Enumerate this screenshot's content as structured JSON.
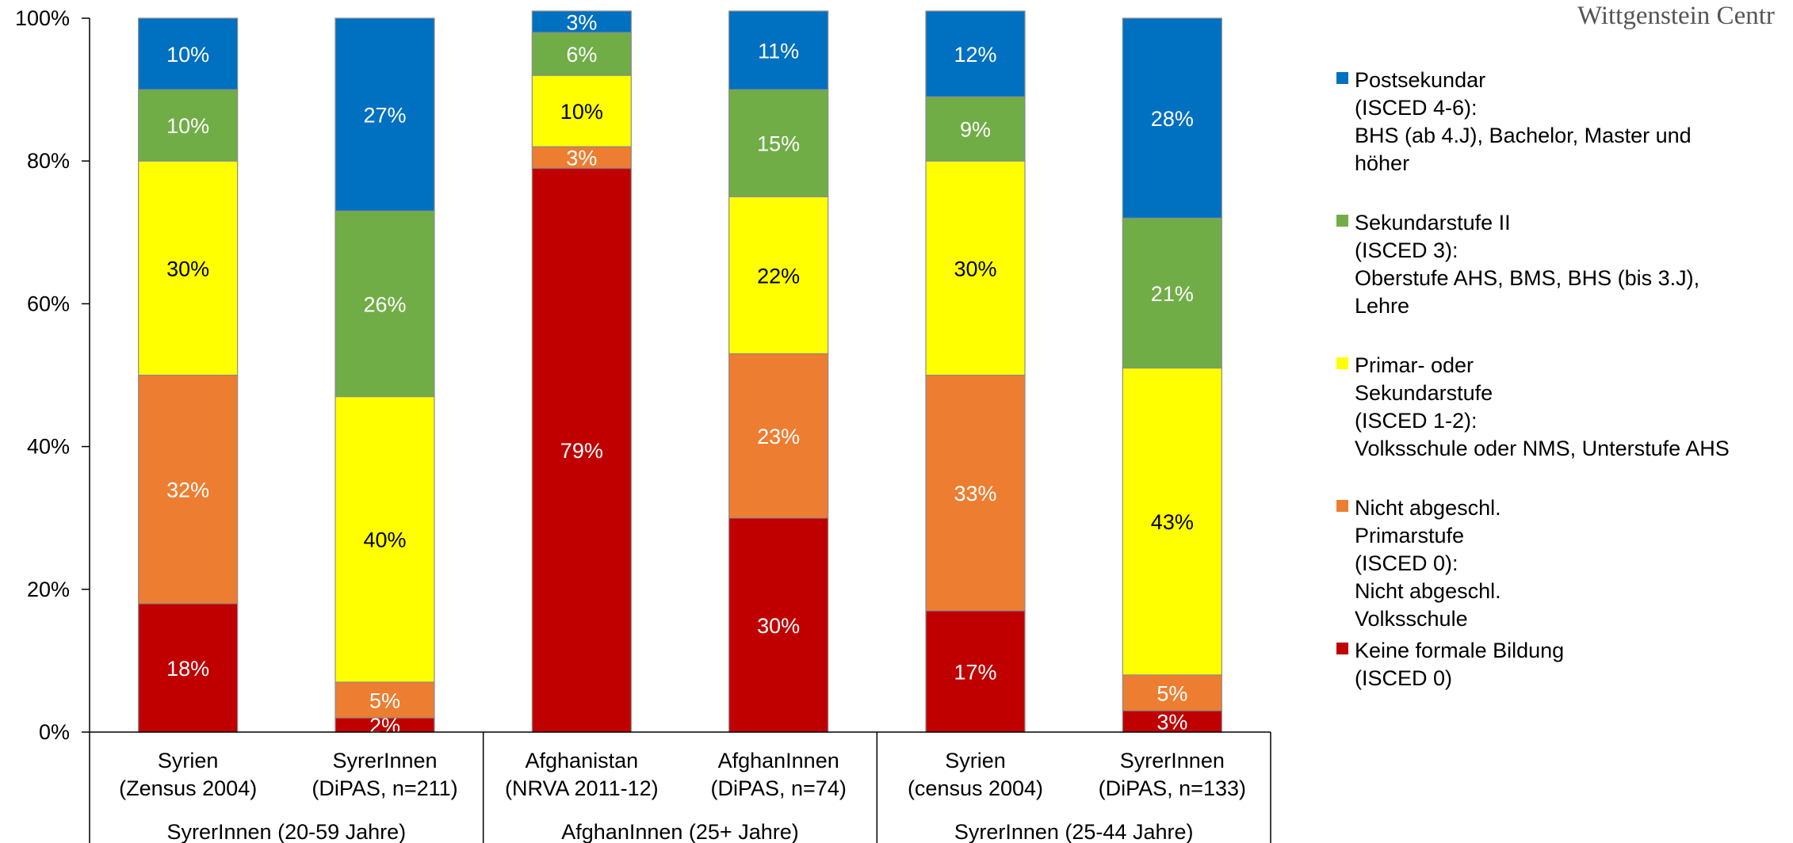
{
  "watermark": "Wittgenstein Centr",
  "chart_data": {
    "type": "bar",
    "stacked": true,
    "orientation": "vertical",
    "ylim": [
      0,
      100
    ],
    "yticks": [
      "0%",
      "20%",
      "40%",
      "60%",
      "80%",
      "100%"
    ],
    "grid": false,
    "legend_position": "right",
    "categories": [
      [
        "Syrien",
        "(Zensus 2004)"
      ],
      [
        "SyrerInnen",
        "(DiPAS, n=211)"
      ],
      [
        "Afghanistan",
        "(NRVA 2011-12)"
      ],
      [
        "AfghanInnen",
        "(DiPAS, n=74)"
      ],
      [
        "Syrien",
        "(census 2004)"
      ],
      [
        "SyrerInnen",
        "(DiPAS, n=133)"
      ]
    ],
    "groups": [
      {
        "label": "SyrerInnen (20-59 Jahre)",
        "start": 0,
        "count": 2
      },
      {
        "label": "AfghanInnen (25+ Jahre)",
        "start": 2,
        "count": 2
      },
      {
        "label": "SyrerInnen (25-44 Jahre)",
        "start": 4,
        "count": 2
      }
    ],
    "series": [
      {
        "name": [
          "Keine formale Bildung",
          "(ISCED 0)"
        ],
        "color": "#C00000",
        "label_color": "#ffffff",
        "values": [
          18,
          2,
          79,
          30,
          17,
          3
        ],
        "labels": [
          "18%",
          "2%",
          "79%",
          "30%",
          "17%",
          "3%"
        ]
      },
      {
        "name": [
          "Nicht abgeschl.",
          "Primarstufe",
          "(ISCED 0):",
          "Nicht abgeschl.",
          "Volksschule"
        ],
        "color": "#ED7D31",
        "label_color": "#ffffff",
        "values": [
          32,
          5,
          3,
          23,
          33,
          5
        ],
        "labels": [
          "32%",
          "5%",
          "3%",
          "23%",
          "33%",
          "5%"
        ]
      },
      {
        "name": [
          "Primar- oder",
          "Sekundarstufe",
          "(ISCED 1-2):",
          "Volksschule oder NMS, Unterstufe AHS"
        ],
        "color": "#FFFF00",
        "label_color": "#000000",
        "values": [
          30,
          40,
          10,
          22,
          30,
          43
        ],
        "labels": [
          "30%",
          "40%",
          "10%",
          "22%",
          "30%",
          "43%"
        ]
      },
      {
        "name": [
          "Sekundarstufe II",
          "(ISCED 3):",
          "Oberstufe AHS, BMS, BHS (bis 3.J),",
          "Lehre"
        ],
        "color": "#70AD47",
        "label_color": "#ffffff",
        "values": [
          10,
          26,
          6,
          15,
          9,
          21
        ],
        "labels": [
          "10%",
          "26%",
          "6%",
          "15%",
          "9%",
          "21%"
        ]
      },
      {
        "name": [
          "Postsekundar",
          "(ISCED 4-6):",
          "BHS (ab 4.J), Bachelor, Master und",
          "höher"
        ],
        "color": "#0070C0",
        "label_color": "#ffffff",
        "values": [
          10,
          27,
          3,
          11,
          12,
          28
        ],
        "labels": [
          "10%",
          "27%",
          "3%",
          "11%",
          "12%",
          "28%"
        ]
      }
    ],
    "legend_order": [
      4,
      3,
      2,
      1,
      0
    ]
  }
}
